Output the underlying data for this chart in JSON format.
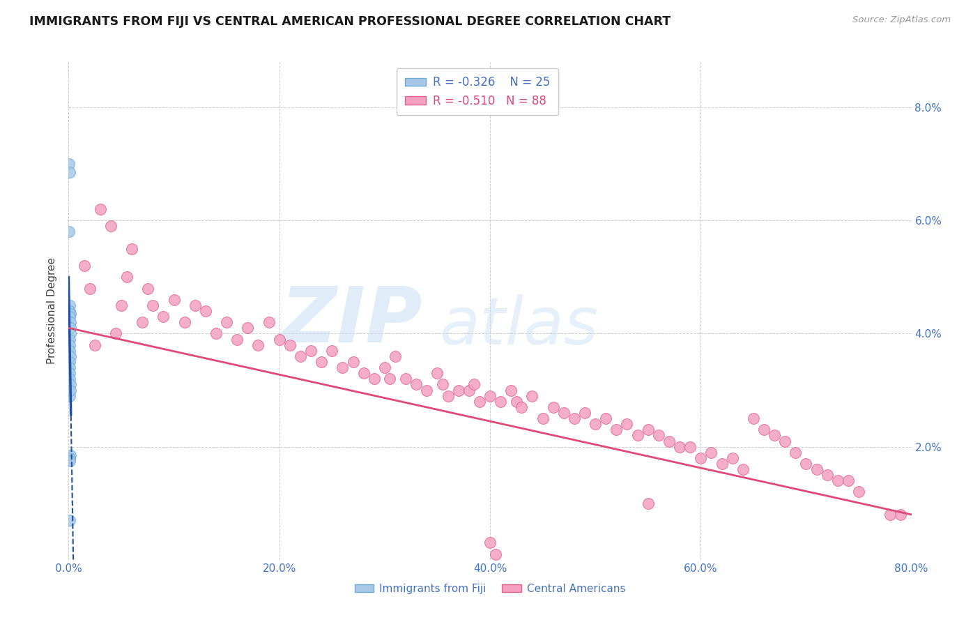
{
  "title": "IMMIGRANTS FROM FIJI VS CENTRAL AMERICAN PROFESSIONAL DEGREE CORRELATION CHART",
  "source": "Source: ZipAtlas.com",
  "ylabel": "Professional Degree",
  "xlim": [
    0.0,
    80.0
  ],
  "ylim": [
    0.0,
    8.8
  ],
  "fiji_color": "#a8c8e8",
  "fiji_edge_color": "#6aaad4",
  "ca_color": "#f4a0c0",
  "ca_edge_color": "#e0608a",
  "fiji_line_color": "#2050a0",
  "ca_line_color": "#e04878",
  "fiji_R": -0.326,
  "fiji_N": 25,
  "ca_R": -0.51,
  "ca_N": 88,
  "legend_label_fiji": "Immigrants from Fiji",
  "legend_label_ca": "Central Americans",
  "watermark_zip": "ZIP",
  "watermark_atlas": "atlas",
  "background_color": "#ffffff",
  "fiji_scatter_x": [
    0.05,
    0.08,
    0.05,
    0.12,
    0.08,
    0.15,
    0.1,
    0.18,
    0.2,
    0.15,
    0.1,
    0.08,
    0.12,
    0.15,
    0.1,
    0.08,
    0.12,
    0.1,
    0.15,
    0.08,
    0.2,
    0.1,
    0.12,
    0.08,
    0.15
  ],
  "fiji_scatter_y": [
    7.0,
    6.85,
    5.8,
    4.5,
    4.4,
    4.35,
    4.3,
    4.2,
    4.1,
    4.0,
    3.9,
    3.8,
    3.7,
    3.6,
    3.5,
    3.4,
    3.3,
    3.2,
    3.1,
    2.9,
    1.85,
    1.8,
    1.75,
    0.7,
    3.0
  ],
  "ca_scatter_x": [
    1.5,
    2.0,
    3.0,
    4.0,
    5.0,
    5.5,
    6.0,
    7.0,
    7.5,
    8.0,
    9.0,
    10.0,
    11.0,
    12.0,
    13.0,
    14.0,
    15.0,
    16.0,
    17.0,
    18.0,
    19.0,
    20.0,
    21.0,
    22.0,
    23.0,
    24.0,
    25.0,
    26.0,
    27.0,
    28.0,
    29.0,
    30.0,
    30.5,
    31.0,
    32.0,
    33.0,
    34.0,
    35.0,
    35.5,
    36.0,
    37.0,
    38.0,
    38.5,
    39.0,
    40.0,
    41.0,
    42.0,
    42.5,
    43.0,
    44.0,
    45.0,
    46.0,
    47.0,
    48.0,
    49.0,
    50.0,
    51.0,
    52.0,
    53.0,
    54.0,
    55.0,
    56.0,
    57.0,
    58.0,
    59.0,
    60.0,
    61.0,
    62.0,
    63.0,
    64.0,
    65.0,
    66.0,
    67.0,
    68.0,
    69.0,
    70.0,
    71.0,
    72.0,
    73.0,
    74.0,
    75.0,
    79.0,
    40.0,
    40.5,
    55.0,
    78.0,
    2.5,
    4.5
  ],
  "ca_scatter_y": [
    5.2,
    4.8,
    6.2,
    5.9,
    4.5,
    5.0,
    5.5,
    4.2,
    4.8,
    4.5,
    4.3,
    4.6,
    4.2,
    4.5,
    4.4,
    4.0,
    4.2,
    3.9,
    4.1,
    3.8,
    4.2,
    3.9,
    3.8,
    3.6,
    3.7,
    3.5,
    3.7,
    3.4,
    3.5,
    3.3,
    3.2,
    3.4,
    3.2,
    3.6,
    3.2,
    3.1,
    3.0,
    3.3,
    3.1,
    2.9,
    3.0,
    3.0,
    3.1,
    2.8,
    2.9,
    2.8,
    3.0,
    2.8,
    2.7,
    2.9,
    2.5,
    2.7,
    2.6,
    2.5,
    2.6,
    2.4,
    2.5,
    2.3,
    2.4,
    2.2,
    2.3,
    2.2,
    2.1,
    2.0,
    2.0,
    1.8,
    1.9,
    1.7,
    1.8,
    1.6,
    2.5,
    2.3,
    2.2,
    2.1,
    1.9,
    1.7,
    1.6,
    1.5,
    1.4,
    1.4,
    1.2,
    0.8,
    0.3,
    0.1,
    1.0,
    0.8,
    3.8,
    4.0
  ]
}
